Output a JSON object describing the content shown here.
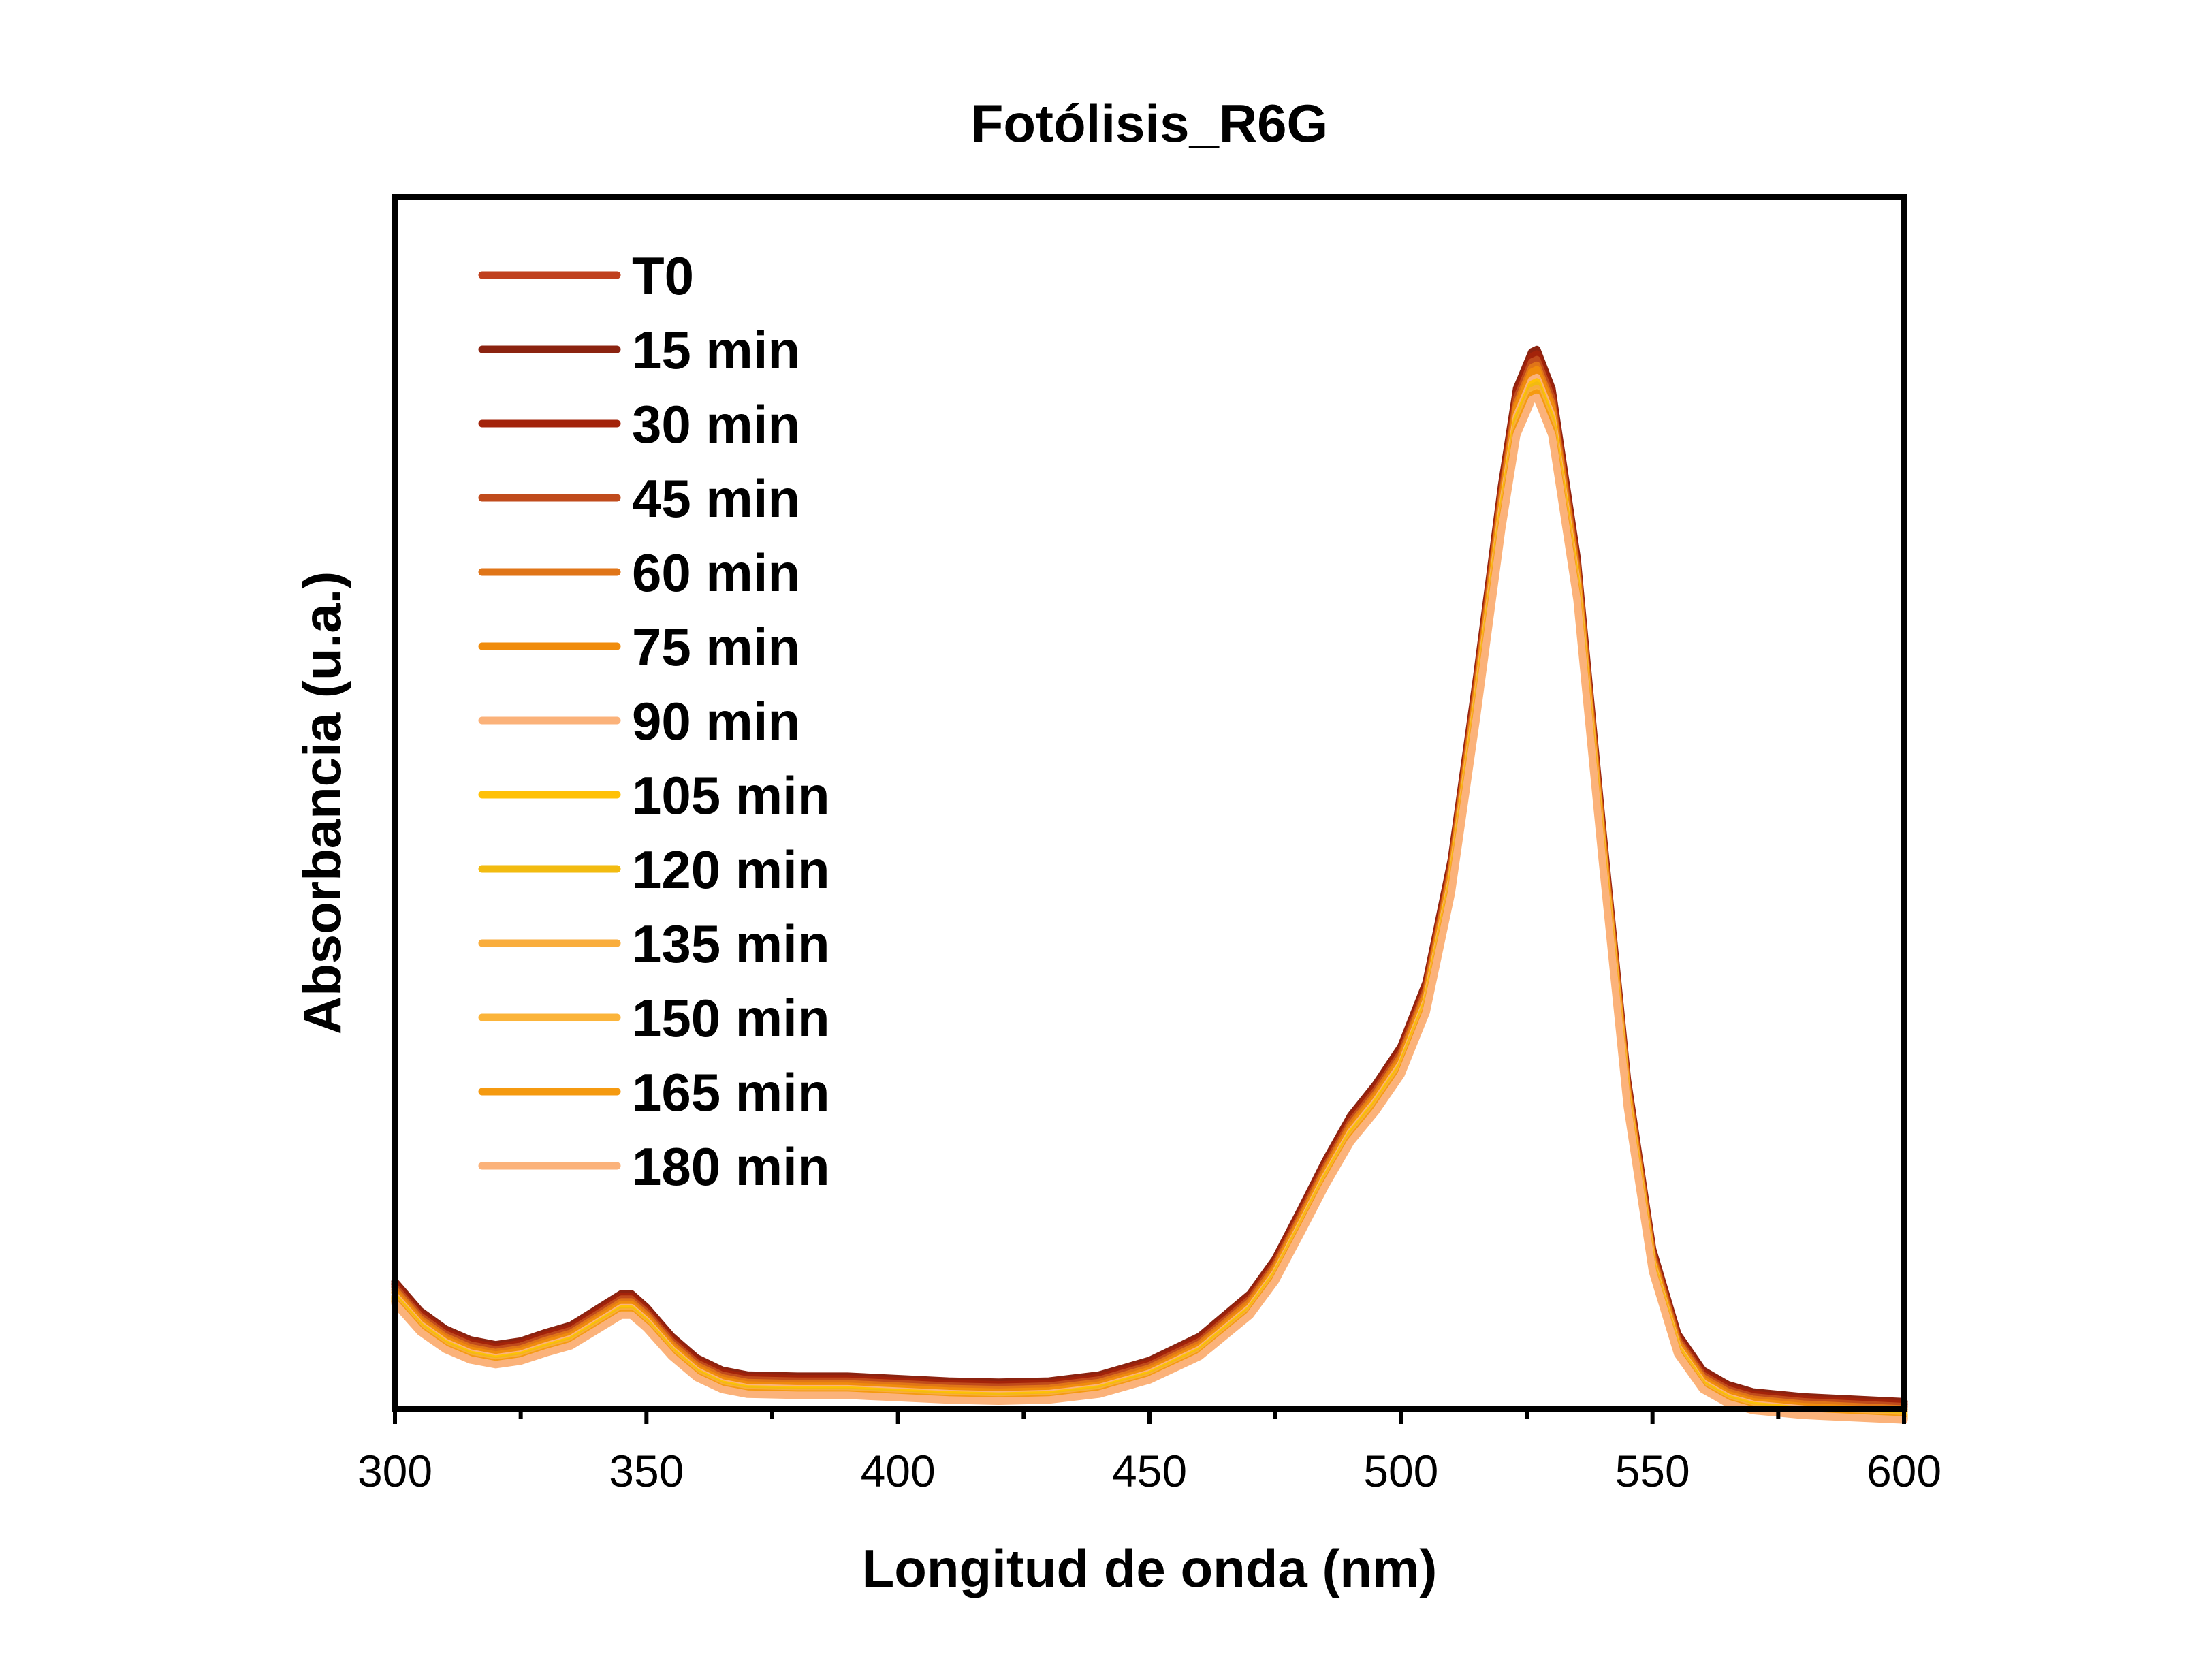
{
  "chart_data": {
    "type": "line",
    "title": "Fotólisis_R6G",
    "xlabel": "Longitud de onda (nm)",
    "ylabel": "Absorbancia (u.a.)",
    "xlim": [
      300,
      600
    ],
    "ylim": [
      0,
      1.0
    ],
    "x_ticks": [
      "300",
      "350",
      "400",
      "450",
      "500",
      "550",
      "600"
    ],
    "y_ticks": [],
    "grid": false,
    "legend_position": "top-left",
    "base_spectrum": {
      "x": [
        300,
        305,
        310,
        315,
        320,
        325,
        330,
        335,
        340,
        345,
        347,
        350,
        355,
        360,
        365,
        370,
        380,
        390,
        400,
        410,
        420,
        430,
        440,
        450,
        460,
        470,
        475,
        480,
        485,
        490,
        495,
        500,
        505,
        510,
        515,
        520,
        523,
        526,
        527,
        530,
        535,
        540,
        545,
        550,
        555,
        560,
        565,
        570,
        580,
        590,
        600
      ],
      "y": [
        0.103,
        0.079,
        0.064,
        0.055,
        0.051,
        0.054,
        0.061,
        0.067,
        0.08,
        0.093,
        0.093,
        0.082,
        0.058,
        0.04,
        0.03,
        0.026,
        0.025,
        0.025,
        0.023,
        0.021,
        0.02,
        0.021,
        0.026,
        0.038,
        0.058,
        0.093,
        0.122,
        0.162,
        0.203,
        0.24,
        0.266,
        0.297,
        0.35,
        0.451,
        0.6,
        0.76,
        0.84,
        0.87,
        0.872,
        0.84,
        0.7,
        0.48,
        0.27,
        0.13,
        0.06,
        0.03,
        0.018,
        0.012,
        0.008,
        0.006,
        0.004
      ]
    },
    "series": [
      {
        "name": "T0",
        "color": "#c0401e",
        "scale": 1.0,
        "offset": 0.0
      },
      {
        "name": "15 min",
        "color": "#8b2310",
        "scale": 1.0,
        "offset": 0.002
      },
      {
        "name": "30 min",
        "color": "#a3230a",
        "scale": 0.998,
        "offset": 0.0
      },
      {
        "name": "45 min",
        "color": "#c04b1c",
        "scale": 0.995,
        "offset": -0.002
      },
      {
        "name": "60 min",
        "color": "#e07518",
        "scale": 0.992,
        "offset": -0.004
      },
      {
        "name": "75 min",
        "color": "#f08c0c",
        "scale": 0.99,
        "offset": -0.006
      },
      {
        "name": "90 min",
        "color": "#fbb27a",
        "scale": 0.985,
        "offset": -0.008
      },
      {
        "name": "105 min",
        "color": "#ffc107",
        "scale": 0.982,
        "offset": -0.009
      },
      {
        "name": "120 min",
        "color": "#f2bb10",
        "scale": 0.98,
        "offset": -0.01
      },
      {
        "name": "135 min",
        "color": "#f9ad3c",
        "scale": 0.978,
        "offset": -0.011
      },
      {
        "name": "150 min",
        "color": "#fbb43a",
        "scale": 0.976,
        "offset": -0.012
      },
      {
        "name": "165 min",
        "color": "#f59a10",
        "scale": 0.975,
        "offset": -0.012
      },
      {
        "name": "180 min",
        "color": "#fbb27a",
        "scale": 0.972,
        "offset": -0.013
      }
    ]
  }
}
